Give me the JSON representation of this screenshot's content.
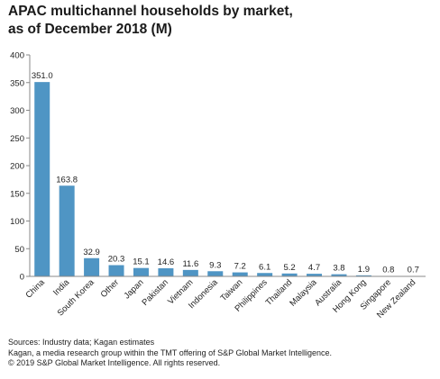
{
  "title_lines": [
    "APAC multichannel households by market,",
    "as of December 2018 (M)"
  ],
  "chart_data": {
    "type": "bar",
    "title": "APAC multichannel households by market, as of December 2018 (M)",
    "categories": [
      "China",
      "India",
      "South Korea",
      "Other",
      "Japan",
      "Pakistan",
      "Vietnam",
      "Indonesia",
      "Taiwan",
      "Philippines",
      "Thailand",
      "Malaysia",
      "Australia",
      "Hong Kong",
      "Singapore",
      "New Zealand"
    ],
    "values": [
      351.0,
      163.8,
      32.9,
      20.3,
      15.1,
      14.6,
      11.6,
      9.3,
      7.2,
      6.1,
      5.2,
      4.7,
      3.8,
      1.9,
      0.8,
      0.7
    ],
    "data_labels": [
      "351.0",
      "163.8",
      "32.9",
      "20.3",
      "15.1",
      "14.6",
      "11.6",
      "9.3",
      "7.2",
      "6.1",
      "5.2",
      "4.7",
      "3.8",
      "1.9",
      "0.8",
      "0.7"
    ],
    "ylim": [
      0,
      400
    ],
    "yticks": [
      "0",
      "50",
      "100",
      "150",
      "200",
      "250",
      "300",
      "350",
      "400"
    ],
    "xlabel": "",
    "ylabel": "",
    "grid": false,
    "bar_color": "#4f95c4"
  },
  "footer": {
    "sources": "Sources: Industry data; Kagan estimates",
    "kagan": "Kagan, a media research group within the TMT offering of S&P Global Market Intelligence.",
    "copyright": "© 2019 S&P Global Market Intelligence. All rights reserved."
  }
}
